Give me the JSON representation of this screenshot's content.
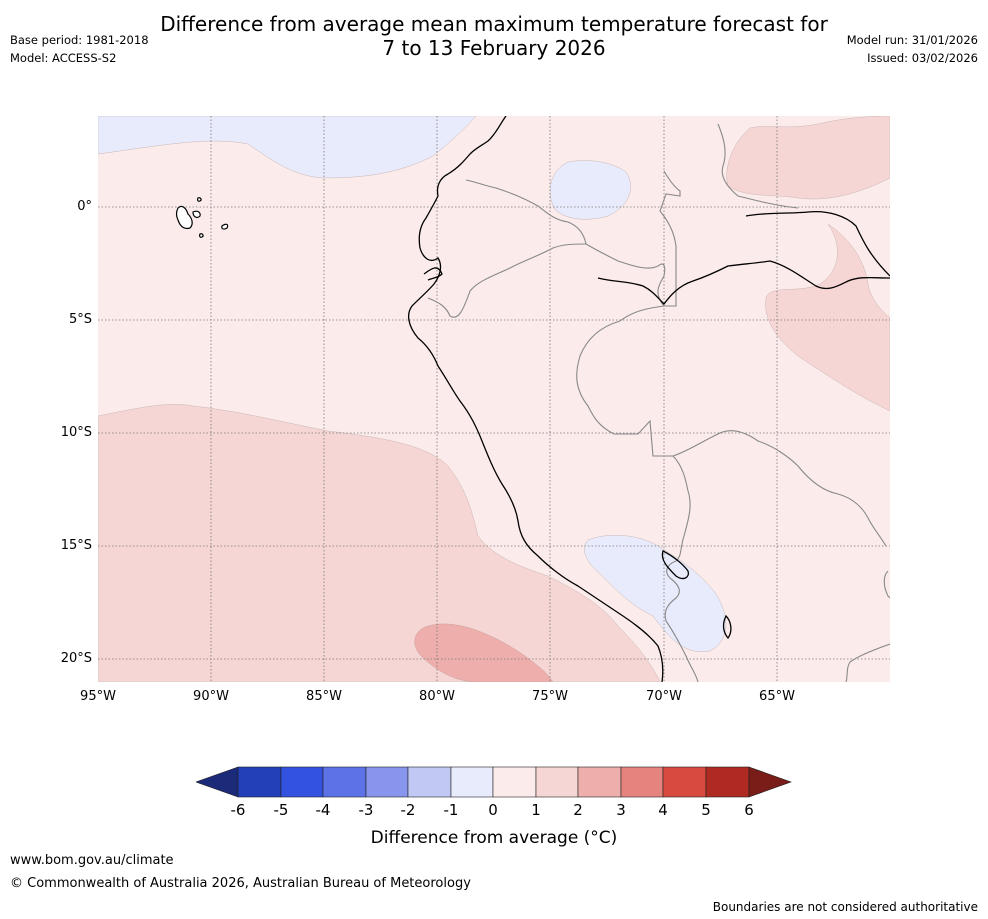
{
  "header": {
    "title_line1": "Difference from average mean maximum temperature forecast for",
    "title_line2": "7 to 13 February 2026",
    "base_period": "Base period: 1981-2018",
    "model": "Model: ACCESS-S2",
    "model_run": "Model run: 31/01/2026",
    "issued": "Issued: 03/02/2026"
  },
  "map": {
    "lon_range": [
      -95,
      -60
    ],
    "lat_range": [
      -21,
      4
    ],
    "lat_labels": [
      {
        "value": 0,
        "text": "0°"
      },
      {
        "value": -5,
        "text": "5°S"
      },
      {
        "value": -10,
        "text": "10°S"
      },
      {
        "value": -15,
        "text": "15°S"
      },
      {
        "value": -20,
        "text": "20°S"
      }
    ],
    "lon_labels": [
      {
        "value": -95,
        "text": "95°W"
      },
      {
        "value": -90,
        "text": "90°W"
      },
      {
        "value": -85,
        "text": "85°W"
      },
      {
        "value": -80,
        "text": "80°W"
      },
      {
        "value": -75,
        "text": "75°W"
      },
      {
        "value": -70,
        "text": "70°W"
      },
      {
        "value": -65,
        "text": "65°W"
      }
    ]
  },
  "legend": {
    "ticks": [
      "-6",
      "-5",
      "-4",
      "-3",
      "-2",
      "-1",
      "0",
      "1",
      "2",
      "3",
      "4",
      "5",
      "6"
    ],
    "colors": [
      "#1c2a7a",
      "#2340b8",
      "#3452e0",
      "#5c72e6",
      "#8795ec",
      "#c2c8f4",
      "#e8ebfb",
      "#fbeceb",
      "#f5d6d4",
      "#eeaeab",
      "#e5847e",
      "#d84a40",
      "#ae2a22",
      "#7a1c18"
    ],
    "label": "Difference from average (°C)"
  },
  "footer": {
    "url": "www.bom.gov.au/climate",
    "copyright": "© Commonwealth of Australia 2026, Australian Bureau of Meteorology",
    "note": "Boundaries are not considered authoritative"
  }
}
